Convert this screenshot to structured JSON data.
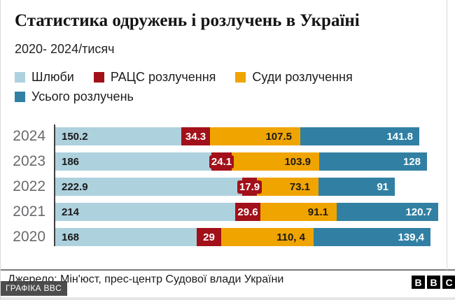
{
  "page": {
    "title": "Статистика одружень і розлучень в Україні",
    "subtitle": "2020- 2024/тисяч",
    "source": "Джерело: Мін'юст, прес-центр Судової влади України",
    "badge": "ГРАФІКА BBC",
    "logo": {
      "letters": [
        "B",
        "B",
        "C"
      ]
    }
  },
  "colors": {
    "marriages": "#aed1de",
    "racs_divorces": "#a2101a",
    "court_divorces": "#f0a400",
    "total_divorces": "#3180a3",
    "year_label": "#6a6a6e",
    "axis": "#3f3f3f"
  },
  "chart_data": {
    "type": "bar",
    "orientation": "horizontal",
    "stacked": true,
    "title": "Статистика одружень і розлучень в Україні",
    "subtitle": "2020- 2024/тисяч",
    "unit": "тисяч",
    "legend_position": "top",
    "grid": false,
    "categories": [
      "2024",
      "2023",
      "2022",
      "2021",
      "2020"
    ],
    "series": [
      {
        "name": "Шлюби",
        "color": "#aed1de",
        "values": [
          150.2,
          186,
          222.9,
          214,
          168
        ],
        "labels": [
          "150.2",
          "186",
          "222.9",
          "214",
          "168"
        ]
      },
      {
        "name": "РАЦС розлучення",
        "color": "#a2101a",
        "values": [
          34.3,
          24.1,
          17.9,
          29.6,
          29
        ],
        "labels": [
          "34.3",
          "24.1",
          "17.9",
          "29.6",
          "29"
        ]
      },
      {
        "name": "Суди розлучення",
        "color": "#f0a400",
        "values": [
          107.5,
          103.9,
          73.1,
          91.1,
          110.4
        ],
        "labels": [
          "107.5",
          "103.9",
          "73.1",
          "91.1",
          "110, 4"
        ]
      },
      {
        "name": "Усього розлучень",
        "color": "#3180a3",
        "values": [
          141.8,
          128,
          91,
          120.7,
          139.4
        ],
        "labels": [
          "141.8",
          "128",
          "91",
          "120.7",
          "139,4"
        ]
      }
    ]
  }
}
